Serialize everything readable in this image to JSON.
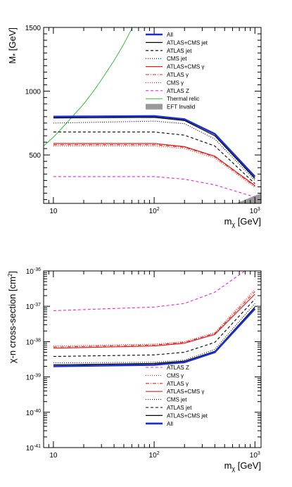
{
  "chart_data": [
    {
      "type": "line",
      "xlabel": "mχ [GeV]",
      "xlabel_main": "m",
      "xlabel_sub": "χ",
      "xlabel_unit": " [GeV]",
      "ylabel": "M* [GeV]",
      "ylabel_main": "M",
      "ylabel_sub": "*",
      "ylabel_unit": " [GeV]",
      "xscale": "log",
      "yscale": "linear",
      "xlim": [
        8,
        1150
      ],
      "ylim": [
        120,
        1500
      ],
      "xticks": [
        {
          "v": 10,
          "t": "10"
        },
        {
          "v": 100,
          "t": "10",
          "sup": "2"
        },
        {
          "v": 1000,
          "t": "10",
          "sup": "3"
        }
      ],
      "yticks": [
        {
          "v": 500,
          "t": "500"
        },
        {
          "v": 1000,
          "t": "1000"
        },
        {
          "v": 1500,
          "t": "1500"
        }
      ],
      "legend_position": "top-right",
      "x": [
        10,
        100,
        200,
        400,
        1000
      ],
      "series": [
        {
          "name": "All",
          "color": "#1b2fcf",
          "dash": "none",
          "width": 2.6,
          "values": [
            800,
            805,
            780,
            665,
            330
          ]
        },
        {
          "name": "ATLAS+CMS jet",
          "color": "#000000",
          "dash": "none",
          "width": 1.2,
          "values": [
            790,
            795,
            770,
            650,
            315
          ]
        },
        {
          "name": "ATLAS jet",
          "color": "#000000",
          "dash": "4,3",
          "width": 1.1,
          "values": [
            680,
            680,
            655,
            570,
            275
          ]
        },
        {
          "name": "CMS jet",
          "color": "#000000",
          "dash": "1,2",
          "width": 1.1,
          "values": [
            750,
            765,
            745,
            625,
            300
          ]
        },
        {
          "name": "ATLAS+CMS γ",
          "color": "#e0201b",
          "dash": "none",
          "width": 1.2,
          "values": [
            590,
            590,
            565,
            490,
            260
          ]
        },
        {
          "name": "ATLAS γ",
          "color": "#e0201b",
          "dash": "5,2,1,2",
          "width": 1.1,
          "values": [
            580,
            580,
            560,
            485,
            255
          ]
        },
        {
          "name": "CMS γ",
          "color": "#e0201b",
          "dash": "1,2",
          "width": 1.1,
          "values": [
            570,
            570,
            550,
            475,
            245
          ]
        },
        {
          "name": "ATLAS Z",
          "color": "#e627d8",
          "dash": "4,3",
          "width": 1.1,
          "values": [
            330,
            330,
            310,
            265,
            170
          ]
        }
      ],
      "thermal_relic": {
        "name": "Thermal relic",
        "color": "#31bd31",
        "x": [
          8,
          10,
          12,
          15,
          20,
          25,
          30,
          40,
          50,
          60
        ],
        "values": [
          570,
          640,
          705,
          790,
          900,
          1000,
          1090,
          1240,
          1370,
          1490
        ]
      },
      "eft_invalid": {
        "name": "EFT Invalid",
        "color": "#999999",
        "x": [
          650,
          1150,
          1150
        ],
        "values": [
          120,
          120,
          200
        ]
      },
      "legend": [
        "All",
        "ATLAS+CMS jet",
        "ATLAS jet",
        "CMS jet",
        "ATLAS+CMS γ",
        "ATLAS γ",
        "CMS γ",
        "ATLAS Z",
        "Thermal relic",
        "EFT Invalid"
      ]
    },
    {
      "type": "line",
      "xlabel": "mχ [GeV]",
      "xlabel_main": "m",
      "xlabel_sub": "χ",
      "xlabel_unit": " [GeV]",
      "ylabel": "χ-n cross-section [cm²]",
      "ylabel_main": "χ-n cross-section [cm",
      "ylabel_sup": "2",
      "ylabel_end": "]",
      "xscale": "log",
      "yscale": "log",
      "xlim": [
        8,
        1150
      ],
      "ylim": [
        1e-41,
        1e-36
      ],
      "xticks": [
        {
          "v": 10,
          "t": "10"
        },
        {
          "v": 100,
          "t": "10",
          "sup": "2"
        },
        {
          "v": 1000,
          "t": "10",
          "sup": "3"
        }
      ],
      "yticks": [
        {
          "v": 1e-41,
          "t": "10",
          "sup": "-41"
        },
        {
          "v": 1e-40,
          "t": "10",
          "sup": "-40"
        },
        {
          "v": 1e-39,
          "t": "10",
          "sup": "-39"
        },
        {
          "v": 1e-38,
          "t": "10",
          "sup": "-38"
        },
        {
          "v": 1e-37,
          "t": "10",
          "sup": "-37"
        },
        {
          "v": 1e-36,
          "t": "10",
          "sup": "-36"
        }
      ],
      "legend_position": "bottom-right",
      "x": [
        10,
        100,
        200,
        400,
        1000
      ],
      "series": [
        {
          "name": "ATLAS Z",
          "color": "#e627d8",
          "dash": "4,3",
          "width": 1.1,
          "values": [
            7.5e-38,
            9.5e-38,
            1.2e-37,
            2.5e-37,
            1.6e-36
          ]
        },
        {
          "name": "CMS γ",
          "color": "#e0201b",
          "dash": "1,2",
          "width": 1.1,
          "values": [
            7.5e-39,
            8.5e-39,
            1e-38,
            1.8e-38,
            3e-37
          ]
        },
        {
          "name": "ATLAS γ",
          "color": "#e0201b",
          "dash": "5,2,1,2",
          "width": 1.1,
          "values": [
            7e-39,
            8e-39,
            9.5e-39,
            1.7e-38,
            2.6e-37
          ]
        },
        {
          "name": "ATLAS+CMS γ",
          "color": "#e0201b",
          "dash": "none",
          "width": 1.2,
          "values": [
            6.5e-39,
            7.5e-39,
            9e-39,
            1.6e-38,
            2.2e-37
          ]
        },
        {
          "name": "CMS jet",
          "color": "#000000",
          "dash": "1,2",
          "width": 1.1,
          "values": [
            2.5e-39,
            2.6e-39,
            3e-39,
            6e-39,
            1.2e-37
          ]
        },
        {
          "name": "ATLAS jet",
          "color": "#000000",
          "dash": "4,3",
          "width": 1.1,
          "values": [
            3.8e-39,
            4.2e-39,
            5e-39,
            9.5e-39,
            1.6e-37
          ]
        },
        {
          "name": "ATLAS+CMS jet",
          "color": "#000000",
          "dash": "none",
          "width": 1.2,
          "values": [
            2.2e-39,
            2.4e-39,
            2.8e-39,
            5.3e-39,
            9.5e-38
          ]
        },
        {
          "name": "All",
          "color": "#1b2fcf",
          "dash": "none",
          "width": 2.6,
          "values": [
            2e-39,
            2.2e-39,
            2.6e-39,
            5e-39,
            8.5e-38
          ]
        }
      ],
      "legend": [
        "ATLAS Z",
        "CMS γ",
        "ATLAS γ",
        "ATLAS+CMS γ",
        "CMS jet",
        "ATLAS jet",
        "ATLAS+CMS jet",
        "All"
      ]
    }
  ]
}
